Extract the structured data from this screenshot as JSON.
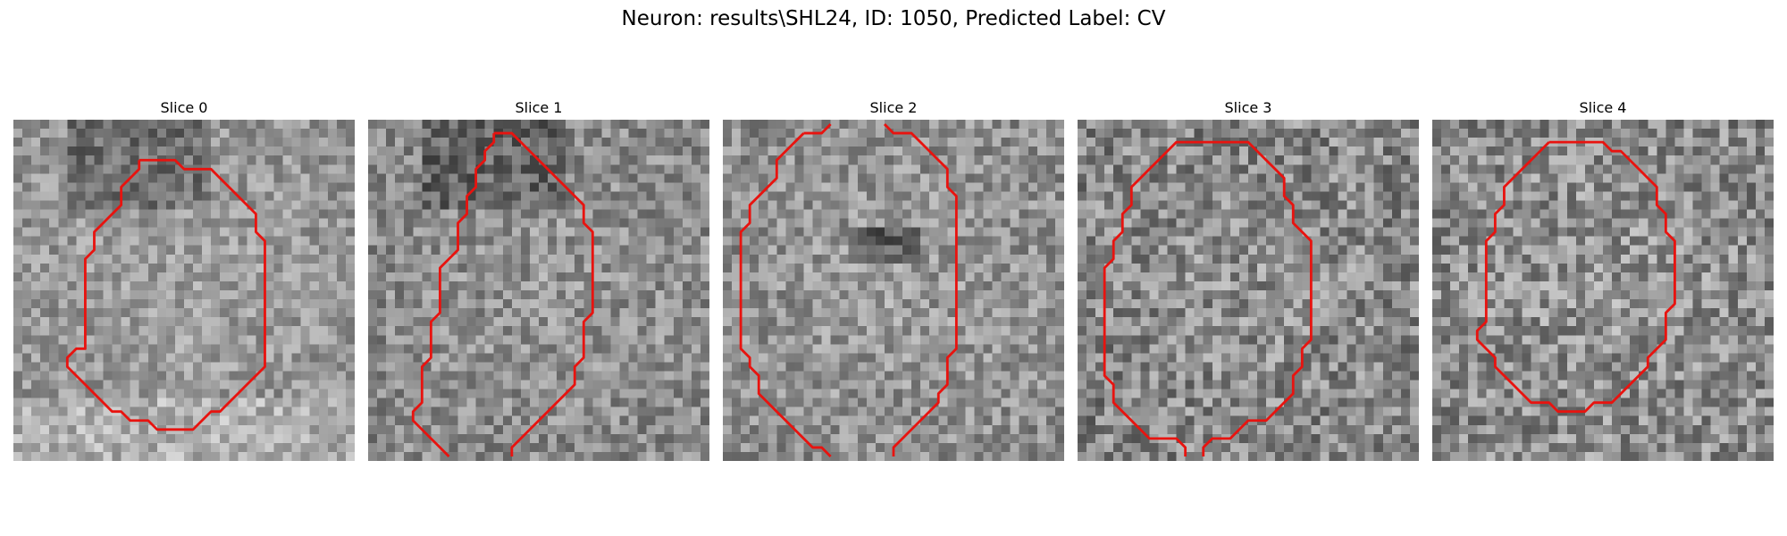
{
  "figure": {
    "title": "Neuron: results\\SHL24, ID: 1050, Predicted Label: CV"
  },
  "contour_color": "#e8130f",
  "panels": [
    {
      "label": "Slice 0",
      "seed": 11,
      "mean": 150,
      "contrast": 40,
      "contour": [
        [
          14,
          4.5
        ],
        [
          18,
          4.5
        ],
        [
          19,
          5.5
        ],
        [
          22,
          5.5
        ],
        [
          23,
          6.5
        ],
        [
          26,
          9.5
        ],
        [
          27,
          10.5
        ],
        [
          27,
          12.5
        ],
        [
          28,
          13.5
        ],
        [
          28,
          27.5
        ],
        [
          26,
          29.5
        ],
        [
          25,
          30.5
        ],
        [
          23,
          32.5
        ],
        [
          22,
          32.5
        ],
        [
          21,
          33.5
        ],
        [
          20,
          34.5
        ],
        [
          16,
          34.5
        ],
        [
          15,
          33.5
        ],
        [
          13,
          33.5
        ],
        [
          12,
          32.5
        ],
        [
          11,
          32.5
        ],
        [
          10,
          31.5
        ],
        [
          9,
          30.5
        ],
        [
          8,
          29.5
        ],
        [
          7,
          28.5
        ],
        [
          6,
          27.5
        ],
        [
          6,
          26.5
        ],
        [
          7,
          25.5
        ],
        [
          8,
          25.5
        ],
        [
          8,
          15.5
        ],
        [
          9,
          14.5
        ],
        [
          9,
          12.5
        ],
        [
          10,
          11.5
        ],
        [
          11,
          10.5
        ],
        [
          12,
          9.5
        ],
        [
          12,
          7.5
        ],
        [
          13,
          6.5
        ],
        [
          14,
          5.5
        ],
        [
          14,
          4.5
        ]
      ],
      "closed": true
    },
    {
      "label": "Slice 1",
      "seed": 23,
      "mean": 140,
      "contrast": 45,
      "contour": [
        [
          14,
          1.5
        ],
        [
          16,
          1.5
        ],
        [
          17,
          2.5
        ],
        [
          18,
          3.5
        ],
        [
          19,
          4.5
        ],
        [
          21,
          6.5
        ],
        [
          22,
          7.5
        ],
        [
          23,
          8.5
        ],
        [
          24,
          9.5
        ],
        [
          24,
          11.5
        ],
        [
          25,
          12.5
        ],
        [
          25,
          21.5
        ],
        [
          24,
          22.5
        ],
        [
          24,
          26.5
        ],
        [
          23,
          27.5
        ],
        [
          23,
          29.5
        ],
        [
          22,
          30.5
        ],
        [
          21,
          31.5
        ],
        [
          20,
          32.5
        ],
        [
          19,
          33.5
        ],
        [
          18,
          34.5
        ],
        [
          17,
          35.5
        ],
        [
          16,
          36.5
        ],
        [
          16,
          37.5
        ]
      ],
      "contour2": [
        [
          9,
          37.5
        ],
        [
          8,
          36.5
        ],
        [
          7,
          35.5
        ],
        [
          6,
          34.5
        ],
        [
          5,
          33.5
        ],
        [
          5,
          32.5
        ],
        [
          6,
          31.5
        ],
        [
          6,
          27.5
        ],
        [
          7,
          26.5
        ],
        [
          7,
          22.5
        ],
        [
          8,
          21.5
        ],
        [
          8,
          16.5
        ],
        [
          9,
          15.5
        ],
        [
          10,
          14.5
        ],
        [
          10,
          11.5
        ],
        [
          11,
          10.5
        ],
        [
          11,
          8.5
        ],
        [
          12,
          7.5
        ],
        [
          12,
          5.5
        ],
        [
          13,
          4.5
        ],
        [
          13,
          3.5
        ],
        [
          14,
          2.5
        ],
        [
          14,
          1.5
        ]
      ],
      "closed": false
    },
    {
      "label": "Slice 2",
      "seed": 37,
      "mean": 145,
      "contrast": 45,
      "contour": [
        [
          9,
          1.5
        ],
        [
          11,
          1.5
        ],
        [
          12,
          0.5
        ]
      ],
      "contour2": [
        [
          18,
          0.5
        ],
        [
          19,
          1.5
        ],
        [
          21,
          1.5
        ],
        [
          22,
          2.5
        ],
        [
          23,
          3.5
        ],
        [
          24,
          4.5
        ],
        [
          25,
          5.5
        ],
        [
          25,
          7.5
        ],
        [
          26,
          8.5
        ],
        [
          26,
          25.5
        ],
        [
          25,
          26.5
        ],
        [
          25,
          29.5
        ],
        [
          24,
          30.5
        ],
        [
          24,
          31.5
        ],
        [
          23,
          32.5
        ],
        [
          22,
          33.5
        ],
        [
          21,
          34.5
        ],
        [
          20,
          35.5
        ],
        [
          19,
          36.5
        ],
        [
          19,
          37.5
        ]
      ],
      "contour3": [
        [
          12,
          37.5
        ],
        [
          11,
          36.5
        ],
        [
          10,
          36.5
        ],
        [
          9,
          35.5
        ],
        [
          8,
          34.5
        ],
        [
          7,
          33.5
        ],
        [
          6,
          32.5
        ],
        [
          5,
          31.5
        ],
        [
          4,
          30.5
        ],
        [
          4,
          28.5
        ],
        [
          3,
          27.5
        ],
        [
          3,
          26.5
        ],
        [
          2,
          25.5
        ],
        [
          2,
          12.5
        ],
        [
          3,
          11.5
        ],
        [
          3,
          9.5
        ],
        [
          4,
          8.5
        ],
        [
          5,
          7.5
        ],
        [
          6,
          6.5
        ],
        [
          6,
          4.5
        ],
        [
          7,
          3.5
        ],
        [
          8,
          2.5
        ],
        [
          9,
          1.5
        ]
      ],
      "closed": false
    },
    {
      "label": "Slice 3",
      "seed": 51,
      "mean": 135,
      "contrast": 55,
      "contour": [
        [
          12,
          2.5
        ],
        [
          19,
          2.5
        ],
        [
          20,
          3.5
        ],
        [
          21,
          4.5
        ],
        [
          22,
          5.5
        ],
        [
          23,
          6.5
        ],
        [
          23,
          8.5
        ],
        [
          24,
          9.5
        ],
        [
          24,
          11.5
        ],
        [
          25,
          12.5
        ],
        [
          26,
          13.5
        ],
        [
          26,
          24.5
        ],
        [
          25,
          25.5
        ],
        [
          25,
          27.5
        ],
        [
          24,
          28.5
        ],
        [
          24,
          30.5
        ],
        [
          23,
          31.5
        ],
        [
          22,
          32.5
        ],
        [
          21,
          33.5
        ],
        [
          19,
          33.5
        ],
        [
          18,
          34.5
        ],
        [
          17,
          35.5
        ],
        [
          15,
          35.5
        ],
        [
          14,
          36.5
        ],
        [
          14,
          37.5
        ]
      ],
      "contour2": [
        [
          16,
          37.5
        ]
      ],
      "contour3": [
        [
          12,
          37.5
        ],
        [
          12,
          36.5
        ],
        [
          11,
          35.5
        ],
        [
          8,
          35.5
        ],
        [
          7,
          34.5
        ],
        [
          6,
          33.5
        ],
        [
          5,
          32.5
        ],
        [
          4,
          31.5
        ],
        [
          4,
          29.5
        ],
        [
          3,
          28.5
        ],
        [
          3,
          16.5
        ],
        [
          4,
          15.5
        ],
        [
          4,
          13.5
        ],
        [
          5,
          12.5
        ],
        [
          5,
          10.5
        ],
        [
          6,
          9.5
        ],
        [
          6,
          7.5
        ],
        [
          7,
          6.5
        ],
        [
          8,
          5.5
        ],
        [
          9,
          4.5
        ],
        [
          10,
          3.5
        ],
        [
          11,
          2.5
        ],
        [
          12,
          2.5
        ]
      ],
      "closed": false
    },
    {
      "label": "Slice 4",
      "seed": 67,
      "mean": 140,
      "contrast": 55,
      "contour": [
        [
          13,
          2.5
        ],
        [
          19,
          2.5
        ],
        [
          20,
          3.5
        ],
        [
          21,
          3.5
        ],
        [
          22,
          4.5
        ],
        [
          23,
          5.5
        ],
        [
          24,
          6.5
        ],
        [
          25,
          7.5
        ],
        [
          25,
          9.5
        ],
        [
          26,
          10.5
        ],
        [
          26,
          12.5
        ],
        [
          27,
          13.5
        ],
        [
          27,
          20.5
        ],
        [
          26,
          21.5
        ],
        [
          26,
          24.5
        ],
        [
          25,
          25.5
        ],
        [
          24,
          26.5
        ],
        [
          24,
          27.5
        ],
        [
          23,
          28.5
        ],
        [
          22,
          29.5
        ],
        [
          21,
          30.5
        ],
        [
          20,
          31.5
        ],
        [
          18,
          31.5
        ],
        [
          17,
          32.5
        ],
        [
          14,
          32.5
        ],
        [
          13,
          31.5
        ],
        [
          11,
          31.5
        ],
        [
          10,
          30.5
        ],
        [
          9,
          29.5
        ],
        [
          8,
          28.5
        ],
        [
          7,
          27.5
        ],
        [
          7,
          26.5
        ],
        [
          6,
          25.5
        ],
        [
          5,
          24.5
        ],
        [
          5,
          23.5
        ],
        [
          6,
          22.5
        ],
        [
          6,
          13.5
        ],
        [
          7,
          12.5
        ],
        [
          7,
          10.5
        ],
        [
          8,
          9.5
        ],
        [
          8,
          7.5
        ],
        [
          9,
          6.5
        ],
        [
          10,
          5.5
        ],
        [
          11,
          4.5
        ],
        [
          12,
          3.5
        ],
        [
          13,
          2.5
        ]
      ],
      "closed": true
    }
  ]
}
